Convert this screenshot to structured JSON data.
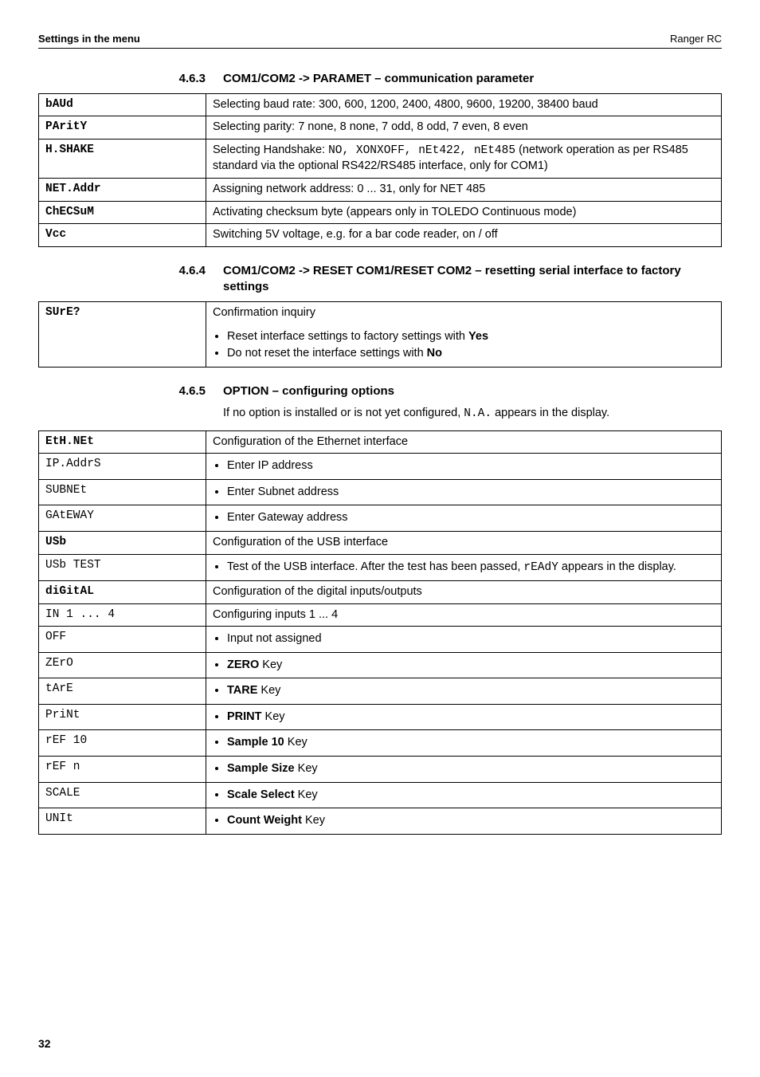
{
  "header": {
    "left": "Settings in the menu",
    "right": "Ranger RC"
  },
  "sec463": {
    "num": "4.6.3",
    "title": "COM1/COM2 -> PARAMET – communication parameter",
    "rows": [
      {
        "k": "bAUd",
        "v": "Selecting baud rate: 300, 600, 1200, 2400, 4800, 9600, 19200, 38400 baud"
      },
      {
        "k": "PAritY",
        "v": "Selecting parity: 7 none, 8 none, 7 odd, 8 odd, 7 even, 8 even"
      },
      {
        "k": "H.SHAKE",
        "v": "Selecting Handshake: <mono>NO, XONXOFF, nEt422, nEt485</mono> (network operation as per RS485 standard via the optional RS422/RS485 interface, only for COM1)"
      },
      {
        "k": "NET.Addr",
        "v": "Assigning network address: 0 ... 31, only for NET 485"
      },
      {
        "k": "ChECSuM",
        "v": "Activating checksum byte (appears only in TOLEDO Continuous mode)"
      },
      {
        "k": "Vcc",
        "v": "Switching 5V voltage, e.g. for a bar code reader, on / off"
      }
    ]
  },
  "sec464": {
    "num": "4.6.4",
    "title": "COM1/COM2 -> RESET COM1/RESET COM2 – resetting serial interface to factory settings",
    "key": "SUrE?",
    "desc": "Confirmation inquiry",
    "b1": "Reset interface settings to factory settings with <b>Yes</b>",
    "b2": "Do not reset the interface settings with <b>No</b>"
  },
  "sec465": {
    "num": "4.6.5",
    "title": "OPTION – configuring options",
    "sub": "If no option is installed or is not yet configured, <mono>N.A.</mono> appears in the display.",
    "eth": {
      "head_k": "EtH.NEt",
      "head_v": "Configuration of the Ethernet interface",
      "r1k": "IP.AddrS",
      "r1v": "Enter IP address",
      "r2k": "SUBNEt",
      "r2v": "Enter Subnet address",
      "r3k": "GAtEWAY",
      "r3v": "Enter Gateway address"
    },
    "usb": {
      "head_k": "USb",
      "head_v": "Configuration of the USB interface",
      "r1k": "USb TEST",
      "r1v": "Test of the USB interface.  After the test has been passed, <mono>rEAdY</mono> appears in the display."
    },
    "dig": {
      "head_k": "diGitAL",
      "head_v": "Configuration of the digital inputs/outputs",
      "r0k": "IN 1 ... 4",
      "r0v": "Configuring inputs 1 ... 4",
      "r1k": "OFF",
      "r1v": "Input not assigned",
      "r2k": "ZErO",
      "r2v": "<b>ZERO</b> Key",
      "r3k": "tArE",
      "r3v": "<b>TARE</b> Key",
      "r4k": "PriNt",
      "r4v": "<b>PRINT</b> Key",
      "r5k": "rEF 10",
      "r5v": "<b>Sample 10</b> Key",
      "r6k": "rEF n",
      "r6v": "<b>Sample Size</b> Key",
      "r7k": "SCALE",
      "r7v": "<b>Scale Select</b> Key",
      "r8k": "UNIt",
      "r8v": "<b>Count Weight</b> Key"
    }
  },
  "footer": "32"
}
